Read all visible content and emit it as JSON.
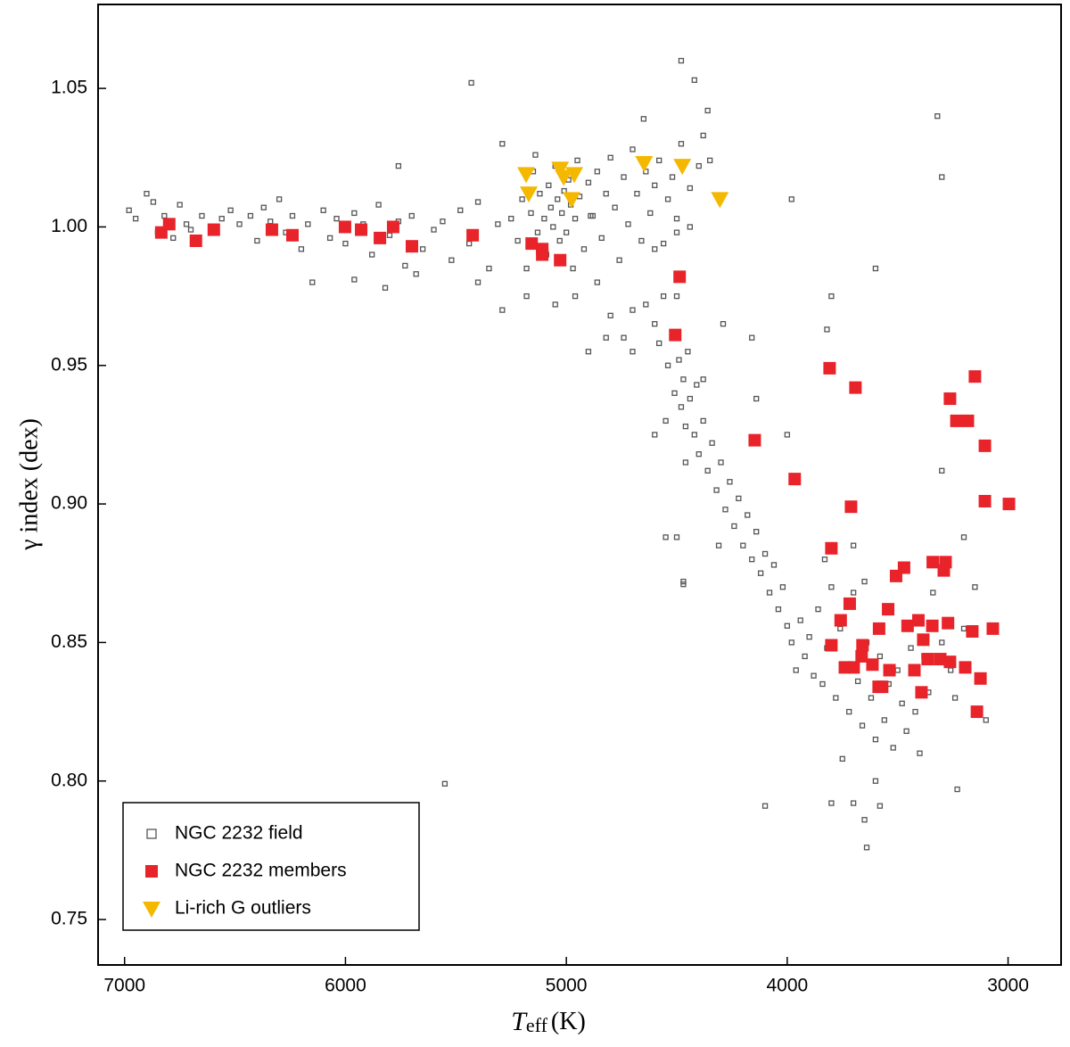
{
  "chart_data": {
    "type": "scatter",
    "x_label": {
      "symbol": "T",
      "subscript": "eff",
      "unit": "(K)"
    },
    "y_label": "γ index (dex)",
    "xlim": [
      7120,
      2760
    ],
    "ylim": [
      0.7336,
      1.0803
    ],
    "xticks": [
      7000,
      6000,
      5000,
      4000,
      3000
    ],
    "yticks": [
      0.75,
      {
        "value": 0.8,
        "label": "0.80"
      },
      0.85,
      {
        "value": 0.9,
        "label": "0.90"
      },
      0.95,
      {
        "value": 1.0,
        "label": "1.00"
      },
      1.05
    ],
    "legend": "lower left",
    "series": [
      {
        "name": "NGC 2232 field",
        "color": "#555555",
        "marker": "square-open",
        "x": [
          6980,
          6950,
          6900,
          6870,
          6850,
          6820,
          6780,
          6750,
          6720,
          6700,
          6650,
          6600,
          6560,
          6520,
          6480,
          6430,
          6400,
          6370,
          6340,
          6300,
          6270,
          6240,
          6200,
          6170,
          6150,
          6100,
          6070,
          6040,
          6000,
          5960,
          5920,
          5880,
          5850,
          5800,
          5760,
          5730,
          5700,
          5650,
          5600,
          5560,
          5520,
          5480,
          5440,
          5400,
          5350,
          5310,
          5760,
          5960,
          5680,
          5820,
          5250,
          5220,
          5200,
          5180,
          5160,
          5150,
          5130,
          5120,
          5100,
          5090,
          5080,
          5070,
          5060,
          5050,
          5040,
          5030,
          5020,
          5010,
          5000,
          4990,
          4980,
          4970,
          4960,
          4950,
          4940,
          4920,
          4900,
          4880,
          4860,
          4840,
          4820,
          4800,
          4780,
          4760,
          4740,
          4720,
          4700,
          4680,
          4660,
          4640,
          4620,
          4600,
          4580,
          4560,
          4540,
          4520,
          4500,
          4480,
          4440,
          4400,
          4380,
          4360,
          4420,
          4480,
          4650,
          5430,
          5290,
          5140,
          4890,
          4860,
          5050,
          4960,
          5180,
          5290,
          5400,
          4820,
          4740,
          4700,
          4900,
          4600,
          4500,
          4700,
          4800,
          4350,
          4440,
          4640,
          4600,
          4580,
          4560,
          4540,
          4520,
          4510,
          4490,
          4480,
          4470,
          4460,
          4450,
          4440,
          4420,
          4410,
          4400,
          4380,
          4360,
          4340,
          4320,
          4300,
          4280,
          4260,
          4240,
          4220,
          4200,
          4180,
          4160,
          4140,
          4120,
          4100,
          4080,
          4060,
          4040,
          4020,
          4000,
          4500,
          4550,
          4460,
          4380,
          4500,
          4470,
          4600,
          4310,
          4160,
          4140,
          3800,
          3820,
          3600,
          3980,
          4290,
          3980,
          3960,
          3940,
          3920,
          3900,
          3880,
          3860,
          3840,
          3820,
          3800,
          3780,
          3760,
          3740,
          3720,
          3700,
          3680,
          3660,
          3640,
          3620,
          3600,
          3580,
          3560,
          3540,
          3520,
          3500,
          3480,
          3460,
          3440,
          3420,
          3400,
          3380,
          3360,
          3340,
          3300,
          3260,
          3240,
          3200,
          3150,
          3100,
          3830,
          3700,
          3650,
          3750,
          3700,
          3650,
          3640,
          3800,
          4100,
          3580,
          3230,
          5550,
          4470,
          4550,
          3320,
          3300,
          3300,
          3200,
          4000,
          3600
        ],
        "y": [
          1.006,
          1.003,
          1.012,
          1.009,
          0.998,
          1.004,
          0.996,
          1.008,
          1.001,
          0.999,
          1.004,
          1.0,
          1.003,
          1.006,
          1.001,
          1.004,
          0.995,
          1.007,
          1.002,
          1.01,
          0.998,
          1.004,
          0.992,
          1.001,
          0.98,
          1.006,
          0.996,
          1.003,
          0.994,
          1.005,
          1.001,
          0.99,
          1.008,
          0.997,
          1.002,
          0.986,
          1.004,
          0.992,
          0.999,
          1.002,
          0.988,
          1.006,
          0.994,
          1.009,
          0.985,
          1.001,
          1.022,
          0.981,
          0.983,
          0.978,
          1.003,
          0.995,
          1.01,
          0.985,
          1.005,
          1.02,
          0.998,
          1.012,
          1.003,
          0.99,
          1.015,
          1.007,
          1.0,
          1.022,
          1.01,
          0.995,
          1.005,
          1.013,
          0.998,
          1.017,
          1.008,
          0.985,
          1.003,
          1.024,
          1.011,
          0.992,
          1.016,
          1.004,
          1.02,
          0.996,
          1.012,
          1.025,
          1.007,
          0.988,
          1.018,
          1.001,
          1.028,
          1.012,
          0.995,
          1.02,
          1.005,
          1.015,
          1.024,
          0.994,
          1.01,
          1.018,
          1.003,
          1.03,
          1.014,
          1.022,
          1.033,
          1.042,
          1.053,
          1.06,
          1.039,
          1.052,
          1.03,
          1.026,
          1.004,
          0.98,
          0.972,
          0.975,
          0.975,
          0.97,
          0.98,
          0.96,
          0.96,
          0.955,
          0.955,
          0.992,
          0.998,
          0.97,
          0.968,
          1.024,
          1.0,
          0.972,
          0.965,
          0.958,
          0.975,
          0.95,
          0.962,
          0.94,
          0.952,
          0.935,
          0.945,
          0.928,
          0.955,
          0.938,
          0.925,
          0.943,
          0.918,
          0.93,
          0.912,
          0.922,
          0.905,
          0.915,
          0.898,
          0.908,
          0.892,
          0.902,
          0.885,
          0.896,
          0.88,
          0.89,
          0.875,
          0.882,
          0.868,
          0.878,
          0.862,
          0.87,
          0.856,
          0.975,
          0.93,
          0.915,
          0.945,
          0.888,
          0.872,
          0.925,
          0.885,
          0.96,
          0.938,
          0.975,
          0.963,
          0.985,
          1.01,
          0.965,
          0.85,
          0.84,
          0.858,
          0.845,
          0.852,
          0.838,
          0.862,
          0.835,
          0.848,
          0.87,
          0.83,
          0.855,
          0.842,
          0.825,
          0.868,
          0.836,
          0.82,
          0.85,
          0.83,
          0.815,
          0.845,
          0.822,
          0.835,
          0.812,
          0.84,
          0.828,
          0.818,
          0.848,
          0.825,
          0.81,
          0.845,
          0.832,
          0.868,
          0.85,
          0.84,
          0.83,
          0.855,
          0.87,
          0.822,
          0.88,
          0.885,
          0.872,
          0.808,
          0.792,
          0.786,
          0.776,
          0.792,
          0.791,
          0.791,
          0.797,
          0.799,
          0.871,
          0.888,
          1.04,
          1.018,
          0.912,
          0.888,
          0.925,
          0.8
        ]
      },
      {
        "name": "NGC 2232 members",
        "color": "#e8232a",
        "marker": "square",
        "x": [
          6834,
          6798,
          6677,
          6596,
          6333,
          6240,
          6002,
          5929,
          5844,
          5784,
          5699,
          5424,
          5157,
          5109,
          5109,
          5028,
          4487,
          4507,
          4147,
          3966,
          3808,
          3691,
          3711,
          3800,
          3263,
          3150,
          3234,
          3182,
          3105,
          3105,
          2996,
          3341,
          3283,
          3291,
          3507,
          3471,
          3758,
          3717,
          3800,
          3659,
          3543,
          3584,
          3455,
          3406,
          3343,
          3272,
          3384,
          3162,
          3069,
          3739,
          3699,
          3663,
          3614,
          3537,
          3586,
          3570,
          3424,
          3364,
          3307,
          3263,
          3194,
          3125,
          3392,
          3141
        ],
        "y": [
          0.998,
          1.001,
          0.995,
          0.999,
          0.999,
          0.997,
          1.0,
          0.999,
          0.996,
          1.0,
          0.993,
          0.997,
          0.994,
          0.99,
          0.992,
          0.988,
          0.982,
          0.961,
          0.923,
          0.909,
          0.949,
          0.942,
          0.899,
          0.884,
          0.938,
          0.946,
          0.93,
          0.93,
          0.921,
          0.901,
          0.9,
          0.879,
          0.879,
          0.876,
          0.874,
          0.877,
          0.858,
          0.864,
          0.849,
          0.849,
          0.862,
          0.855,
          0.856,
          0.858,
          0.856,
          0.857,
          0.851,
          0.854,
          0.855,
          0.841,
          0.841,
          0.845,
          0.842,
          0.84,
          0.834,
          0.834,
          0.84,
          0.844,
          0.844,
          0.843,
          0.841,
          0.837,
          0.832,
          0.825
        ]
      },
      {
        "name": "Li-rich G outliers",
        "color": "#f5b800",
        "marker": "triangle-down",
        "x": [
          5182,
          5170,
          5028,
          5012,
          4964,
          4976,
          4648,
          4475,
          4305
        ],
        "y": [
          1.019,
          1.012,
          1.021,
          1.018,
          1.019,
          1.01,
          1.023,
          1.022,
          1.01
        ]
      }
    ]
  }
}
